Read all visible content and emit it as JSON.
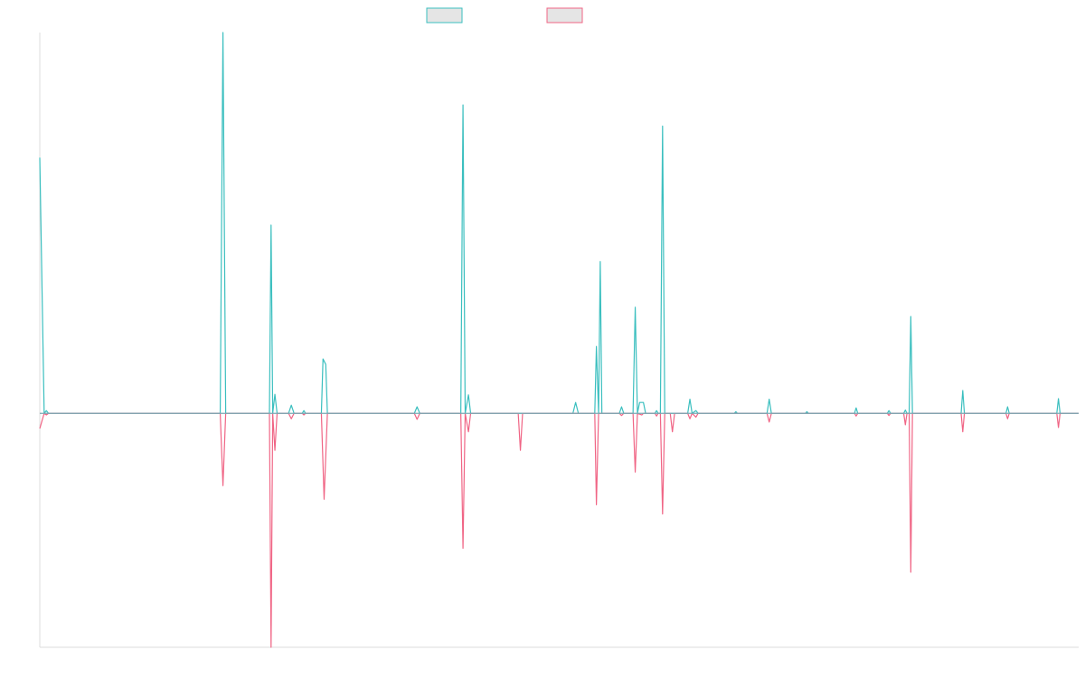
{
  "colors": {
    "series_a": "#3bbfbf",
    "series_b": "#f06585",
    "legend_fill": "#e5e5e5",
    "axis": "#dddddd",
    "background": "#ffffff"
  },
  "chart_data": {
    "type": "line",
    "title": "",
    "xlabel": "",
    "ylabel": "",
    "grid": false,
    "legend": "top-center",
    "xlim": [
      0,
      190
    ],
    "ylim": [
      -43,
      70
    ],
    "series": [
      {
        "values": [
          [
            0,
            47
          ],
          [
            0.8,
            0
          ],
          [
            1.2,
            0.5
          ],
          [
            1.6,
            0
          ],
          [
            33,
            0
          ],
          [
            33.5,
            70
          ],
          [
            34,
            0
          ],
          [
            42,
            0
          ],
          [
            42.3,
            34.6
          ],
          [
            42.6,
            0
          ],
          [
            43,
            3.5
          ],
          [
            43.4,
            0
          ],
          [
            45.5,
            0
          ],
          [
            46,
            1.5
          ],
          [
            46.5,
            0
          ],
          [
            48,
            0
          ],
          [
            48.3,
            0.5
          ],
          [
            48.6,
            0
          ],
          [
            51.5,
            0
          ],
          [
            51.8,
            10
          ],
          [
            52.3,
            9
          ],
          [
            52.6,
            0
          ],
          [
            68.5,
            0
          ],
          [
            69,
            1.2
          ],
          [
            69.5,
            0
          ],
          [
            77,
            0
          ],
          [
            77.4,
            56.7
          ],
          [
            77.8,
            0
          ],
          [
            78.4,
            3.4
          ],
          [
            78.8,
            0
          ],
          [
            97.5,
            0
          ],
          [
            98,
            2
          ],
          [
            98.5,
            0
          ],
          [
            101.5,
            0
          ],
          [
            101.8,
            12.3
          ],
          [
            102.2,
            0
          ],
          [
            102.5,
            27.9
          ],
          [
            102.8,
            0
          ],
          [
            106,
            0
          ],
          [
            106.4,
            1.2
          ],
          [
            106.8,
            0
          ],
          [
            108.5,
            0
          ],
          [
            108.9,
            19.5
          ],
          [
            109.3,
            0
          ],
          [
            109.7,
            2
          ],
          [
            110.4,
            2
          ],
          [
            110.8,
            0
          ],
          [
            112.5,
            0
          ],
          [
            112.8,
            0.5
          ],
          [
            113.1,
            0
          ],
          [
            113.5,
            0
          ],
          [
            113.9,
            52.8
          ],
          [
            114.3,
            0
          ],
          [
            118.5,
            0
          ],
          [
            118.9,
            2.6
          ],
          [
            119.3,
            0
          ],
          [
            120,
            0.5
          ],
          [
            120.4,
            0
          ],
          [
            127,
            0
          ],
          [
            127.3,
            0.3
          ],
          [
            127.6,
            0
          ],
          [
            133,
            0
          ],
          [
            133.4,
            2.6
          ],
          [
            133.8,
            0
          ],
          [
            140,
            0
          ],
          [
            140.3,
            0.3
          ],
          [
            140.6,
            0
          ],
          [
            149,
            0
          ],
          [
            149.3,
            1
          ],
          [
            149.6,
            0
          ],
          [
            155,
            0
          ],
          [
            155.3,
            0.5
          ],
          [
            155.6,
            0
          ],
          [
            158,
            0
          ],
          [
            158.3,
            0.6
          ],
          [
            158.6,
            0
          ],
          [
            159,
            0
          ],
          [
            159.3,
            17.8
          ],
          [
            159.6,
            0
          ],
          [
            168.5,
            0
          ],
          [
            168.8,
            4.2
          ],
          [
            169.1,
            0
          ],
          [
            176.7,
            0
          ],
          [
            177,
            1.2
          ],
          [
            177.3,
            0
          ],
          [
            186,
            0
          ],
          [
            186.3,
            2.7
          ],
          [
            186.6,
            0
          ],
          [
            190,
            0
          ]
        ]
      },
      {
        "values": [
          [
            0,
            -2.8
          ],
          [
            0.8,
            0
          ],
          [
            1.2,
            -0.3
          ],
          [
            1.6,
            0
          ],
          [
            33,
            0
          ],
          [
            33.5,
            -13.3
          ],
          [
            34,
            0
          ],
          [
            42,
            0
          ],
          [
            42.3,
            -43
          ],
          [
            42.6,
            0
          ],
          [
            43,
            -6.8
          ],
          [
            43.4,
            0
          ],
          [
            45.5,
            0
          ],
          [
            46,
            -1
          ],
          [
            46.5,
            0
          ],
          [
            48,
            0
          ],
          [
            48.3,
            -0.3
          ],
          [
            48.6,
            0
          ],
          [
            51.5,
            0
          ],
          [
            52,
            -15.8
          ],
          [
            52.6,
            0
          ],
          [
            68.5,
            0
          ],
          [
            69,
            -1.1
          ],
          [
            69.5,
            0
          ],
          [
            77,
            0
          ],
          [
            77.4,
            -24.8
          ],
          [
            77.8,
            0
          ],
          [
            78.4,
            -3.4
          ],
          [
            78.8,
            0
          ],
          [
            87.5,
            0
          ],
          [
            87.9,
            -6.8
          ],
          [
            88.3,
            0
          ],
          [
            101.5,
            0
          ],
          [
            101.8,
            -16.8
          ],
          [
            102.2,
            0
          ],
          [
            106,
            0
          ],
          [
            106.4,
            -0.4
          ],
          [
            106.8,
            0
          ],
          [
            108.5,
            0
          ],
          [
            108.9,
            -10.8
          ],
          [
            109.3,
            0
          ],
          [
            110.1,
            -0.3
          ],
          [
            110.4,
            0
          ],
          [
            112.5,
            0
          ],
          [
            112.8,
            -0.5
          ],
          [
            113.1,
            0
          ],
          [
            113.5,
            0
          ],
          [
            113.9,
            -18.5
          ],
          [
            114.3,
            0
          ],
          [
            115.3,
            0
          ],
          [
            115.7,
            -3.4
          ],
          [
            116.1,
            0
          ],
          [
            118.5,
            0
          ],
          [
            118.9,
            -1
          ],
          [
            119.3,
            0
          ],
          [
            120,
            -0.7
          ],
          [
            120.4,
            0
          ],
          [
            133,
            0
          ],
          [
            133.4,
            -1.6
          ],
          [
            133.8,
            0
          ],
          [
            149,
            0
          ],
          [
            149.3,
            -0.5
          ],
          [
            149.6,
            0
          ],
          [
            155,
            0
          ],
          [
            155.3,
            -0.4
          ],
          [
            155.6,
            0
          ],
          [
            158,
            0
          ],
          [
            158.3,
            -2.1
          ],
          [
            158.6,
            0
          ],
          [
            159,
            0
          ],
          [
            159.3,
            -29.2
          ],
          [
            159.6,
            0
          ],
          [
            168.5,
            0
          ],
          [
            168.8,
            -3.4
          ],
          [
            169.1,
            0
          ],
          [
            176.7,
            0
          ],
          [
            177,
            -1
          ],
          [
            177.3,
            0
          ],
          [
            186,
            0
          ],
          [
            186.3,
            -2.6
          ],
          [
            186.6,
            0
          ],
          [
            190,
            0
          ]
        ]
      }
    ]
  }
}
